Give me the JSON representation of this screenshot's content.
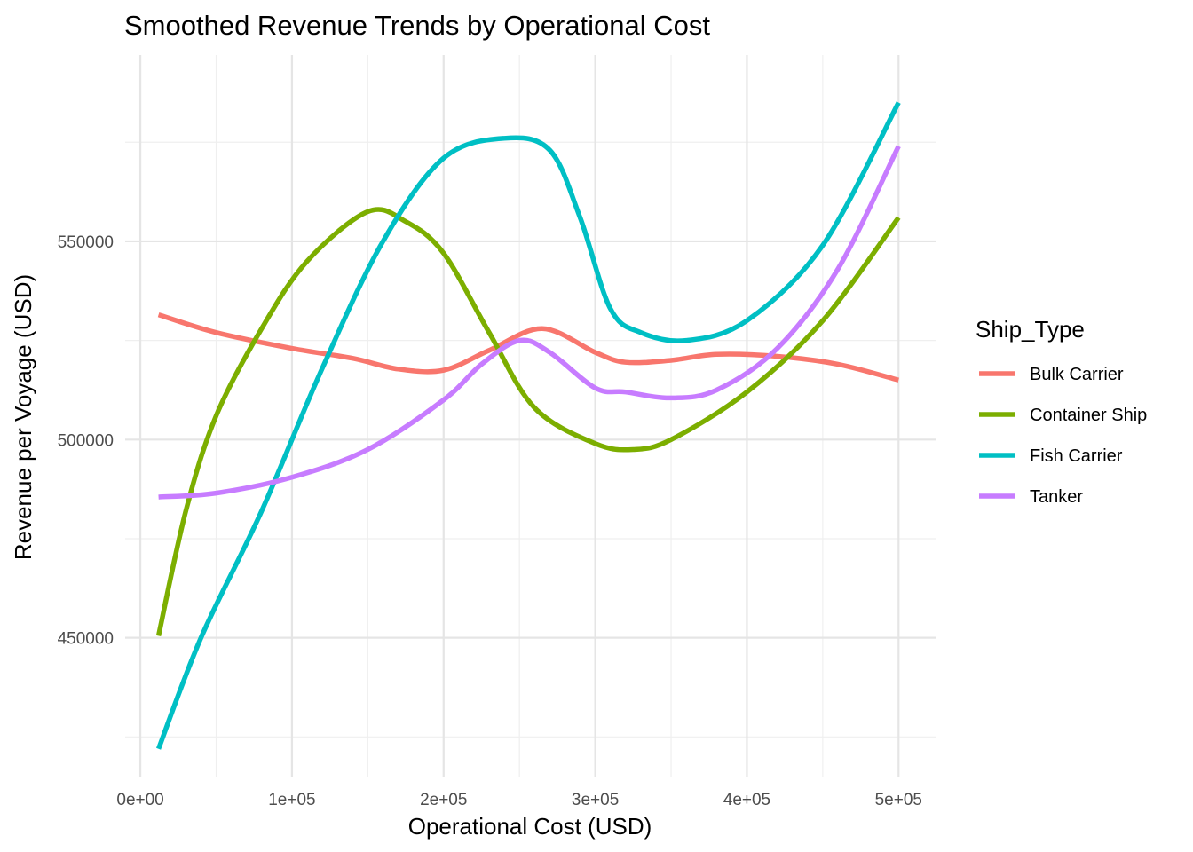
{
  "chart_data": {
    "type": "line",
    "title": "Smoothed Revenue Trends by Operational Cost",
    "xlabel": "Operational Cost (USD)",
    "ylabel": "Revenue per Voyage (USD)",
    "xlim": [
      -10000,
      525000
    ],
    "ylim": [
      415000,
      597000
    ],
    "x_ticks": [
      0,
      100000,
      200000,
      300000,
      400000,
      500000
    ],
    "x_tick_labels": [
      "0e+00",
      "1e+05",
      "2e+05",
      "3e+05",
      "4e+05",
      "5e+05"
    ],
    "x_minor_ticks": [
      50000,
      150000,
      250000,
      350000,
      450000
    ],
    "y_ticks": [
      450000,
      500000,
      550000
    ],
    "y_tick_labels": [
      "450000",
      "500000",
      "550000"
    ],
    "y_minor_ticks": [
      425000,
      475000,
      525000,
      575000
    ],
    "grid": true,
    "legend": {
      "title": "Ship_Type",
      "position": "right"
    },
    "series": [
      {
        "name": "Bulk Carrier",
        "color": "#F8766D",
        "points": [
          [
            12000,
            531500
          ],
          [
            50000,
            527000
          ],
          [
            100000,
            523000
          ],
          [
            140000,
            520500
          ],
          [
            170000,
            517800
          ],
          [
            200000,
            517500
          ],
          [
            230000,
            522500
          ],
          [
            265000,
            528000
          ],
          [
            300000,
            522000
          ],
          [
            320000,
            519500
          ],
          [
            350000,
            520000
          ],
          [
            380000,
            521500
          ],
          [
            420000,
            521000
          ],
          [
            460000,
            519000
          ],
          [
            500000,
            515000
          ]
        ]
      },
      {
        "name": "Container Ship",
        "color": "#7CAE00",
        "points": [
          [
            12000,
            450500
          ],
          [
            30000,
            482000
          ],
          [
            50000,
            506000
          ],
          [
            80000,
            528000
          ],
          [
            110000,
            545000
          ],
          [
            150000,
            557500
          ],
          [
            175000,
            555000
          ],
          [
            200000,
            547000
          ],
          [
            230000,
            527000
          ],
          [
            260000,
            508000
          ],
          [
            300000,
            499000
          ],
          [
            325000,
            497500
          ],
          [
            350000,
            500000
          ],
          [
            400000,
            512000
          ],
          [
            450000,
            530000
          ],
          [
            500000,
            556000
          ]
        ]
      },
      {
        "name": "Fish Carrier",
        "color": "#00BFC4",
        "points": [
          [
            12000,
            422000
          ],
          [
            40000,
            450000
          ],
          [
            80000,
            482000
          ],
          [
            120000,
            518000
          ],
          [
            160000,
            550000
          ],
          [
            200000,
            571000
          ],
          [
            240000,
            576000
          ],
          [
            270000,
            573000
          ],
          [
            290000,
            556000
          ],
          [
            310000,
            533000
          ],
          [
            330000,
            527000
          ],
          [
            360000,
            525000
          ],
          [
            400000,
            530000
          ],
          [
            450000,
            549000
          ],
          [
            500000,
            585000
          ]
        ]
      },
      {
        "name": "Tanker",
        "color": "#C77CFF",
        "points": [
          [
            12000,
            485500
          ],
          [
            50000,
            486500
          ],
          [
            100000,
            490500
          ],
          [
            150000,
            497500
          ],
          [
            200000,
            510000
          ],
          [
            225000,
            519000
          ],
          [
            250000,
            525000
          ],
          [
            270000,
            522000
          ],
          [
            300000,
            513000
          ],
          [
            320000,
            512000
          ],
          [
            350000,
            510500
          ],
          [
            380000,
            512500
          ],
          [
            420000,
            523000
          ],
          [
            460000,
            543000
          ],
          [
            500000,
            574000
          ]
        ]
      }
    ]
  }
}
